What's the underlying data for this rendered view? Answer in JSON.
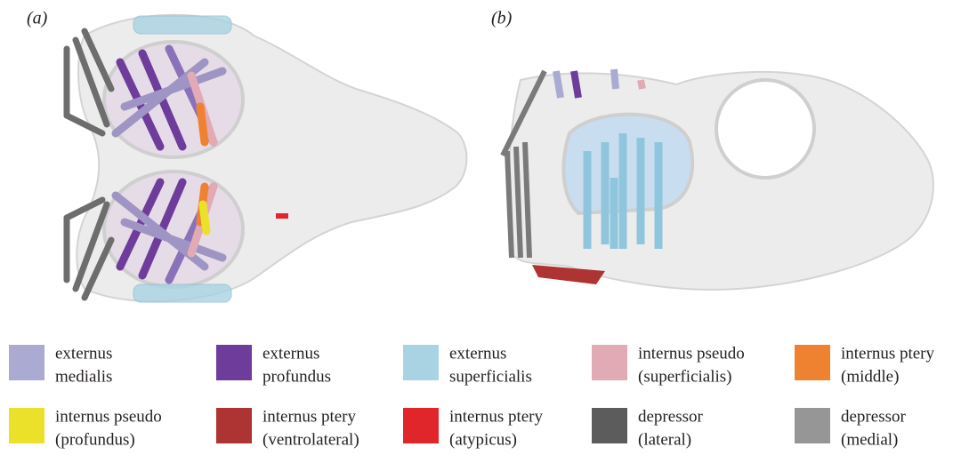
{
  "panels": [
    {
      "label": "(a)"
    },
    {
      "label": "(b)"
    }
  ],
  "legend": [
    {
      "lines": [
        "externus",
        "medialis"
      ],
      "color": "#aaaad2"
    },
    {
      "lines": [
        "externus",
        "profundus"
      ],
      "color": "#6e3c9b"
    },
    {
      "lines": [
        "externus",
        "superficialis"
      ],
      "color": "#a9d3e3"
    },
    {
      "lines": [
        "internus pseudo",
        "(superficialis)"
      ],
      "color": "#e1aab4"
    },
    {
      "lines": [
        "internus ptery",
        "(middle)"
      ],
      "color": "#ee8230"
    },
    {
      "lines": [
        "internus pseudo",
        "(profundus)"
      ],
      "color": "#ece12a"
    },
    {
      "lines": [
        "internus ptery",
        "(ventrolateral)"
      ],
      "color": "#ad3432"
    },
    {
      "lines": [
        "internus ptery",
        "(atypicus)"
      ],
      "color": "#e1262b"
    },
    {
      "lines": [
        "depressor",
        "(lateral)"
      ],
      "color": "#5c5c5c"
    },
    {
      "lines": [
        "depressor",
        "(medial)"
      ],
      "color": "#969696"
    }
  ]
}
